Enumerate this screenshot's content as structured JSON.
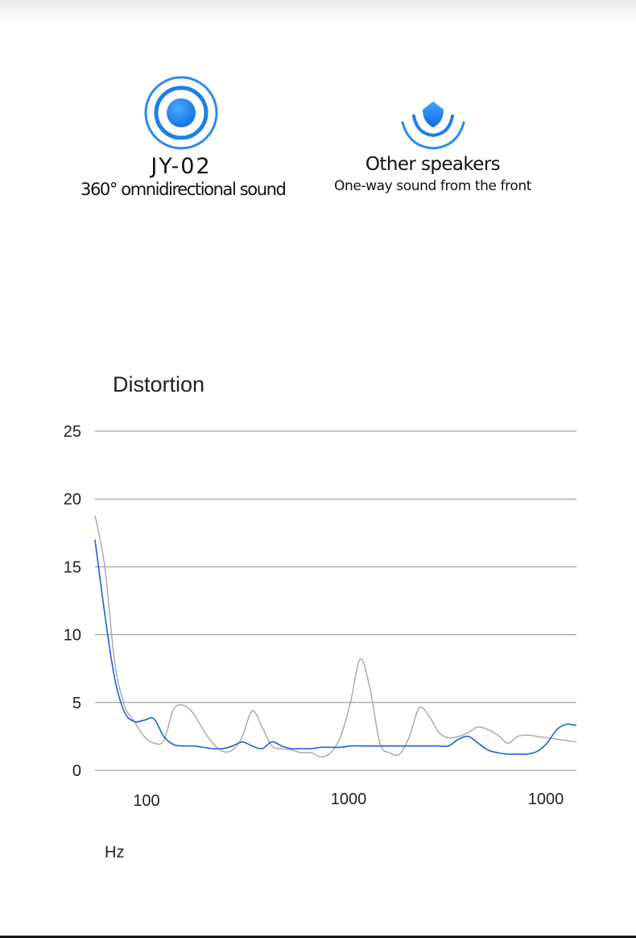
{
  "products": {
    "jy": {
      "name": "JY-02",
      "description": "360° omnidirectional sound",
      "icon": "omnidirectional-sound-icon",
      "color": "#1e7fe8"
    },
    "other": {
      "name": "Other speakers",
      "description": "One-way sound from the front",
      "icon": "one-way-sound-icon",
      "color": "#1e7fe8"
    }
  },
  "chart_data": {
    "type": "line",
    "title": "Distortion",
    "xlabel": "Hz",
    "ylabel": "",
    "ylim": [
      0,
      25
    ],
    "y_ticks": [
      0,
      5,
      10,
      15,
      20,
      25
    ],
    "x_tick_labels": [
      "100",
      "1000",
      "1000"
    ],
    "grid": true,
    "legend": "none",
    "x": [
      0.0,
      0.05,
      0.1,
      0.15,
      0.2,
      0.25,
      0.3,
      0.35,
      0.4,
      0.45,
      0.5,
      0.55,
      0.6,
      0.65,
      0.7,
      0.75,
      0.8,
      0.85,
      0.9,
      0.95,
      1.0,
      1.05,
      1.1,
      1.15,
      1.2,
      1.25,
      1.3,
      1.35,
      1.4,
      1.45,
      1.5,
      1.55,
      1.6,
      1.65,
      1.7,
      1.75,
      1.8,
      1.85,
      1.9,
      1.95,
      2.0,
      2.05,
      2.1,
      2.15,
      2.2,
      2.25,
      2.3,
      2.35,
      2.4,
      2.45
    ],
    "series": [
      {
        "color": "#1f5fd6",
        "values": [
          17.0,
          11.5,
          6.8,
          4.3,
          3.6,
          3.7,
          3.8,
          2.5,
          1.9,
          1.8,
          1.8,
          1.7,
          1.6,
          1.6,
          1.8,
          2.1,
          1.8,
          1.6,
          2.1,
          1.8,
          1.6,
          1.6,
          1.6,
          1.7,
          1.7,
          1.7,
          1.8,
          1.8,
          1.8,
          1.8,
          1.8,
          1.8,
          1.8,
          1.8,
          1.8,
          1.8,
          1.8,
          2.3,
          2.5,
          2.0,
          1.5,
          1.3,
          1.2,
          1.2,
          1.2,
          1.4,
          2.0,
          3.0,
          3.4,
          3.3
        ]
      },
      {
        "color": "#a6a6a6",
        "values": [
          18.8,
          15.0,
          8.0,
          4.8,
          3.6,
          2.5,
          2.0,
          2.2,
          4.5,
          4.8,
          4.2,
          3.0,
          2.0,
          1.4,
          1.5,
          2.5,
          4.4,
          3.2,
          1.8,
          1.6,
          1.5,
          1.3,
          1.3,
          1.0,
          1.3,
          2.5,
          5.0,
          8.2,
          6.0,
          2.0,
          1.3,
          1.2,
          2.5,
          4.6,
          4.0,
          2.8,
          2.4,
          2.5,
          2.8,
          3.2,
          3.0,
          2.6,
          2.0,
          2.5,
          2.6,
          2.5,
          2.4,
          2.3,
          2.2,
          2.1
        ]
      }
    ]
  }
}
